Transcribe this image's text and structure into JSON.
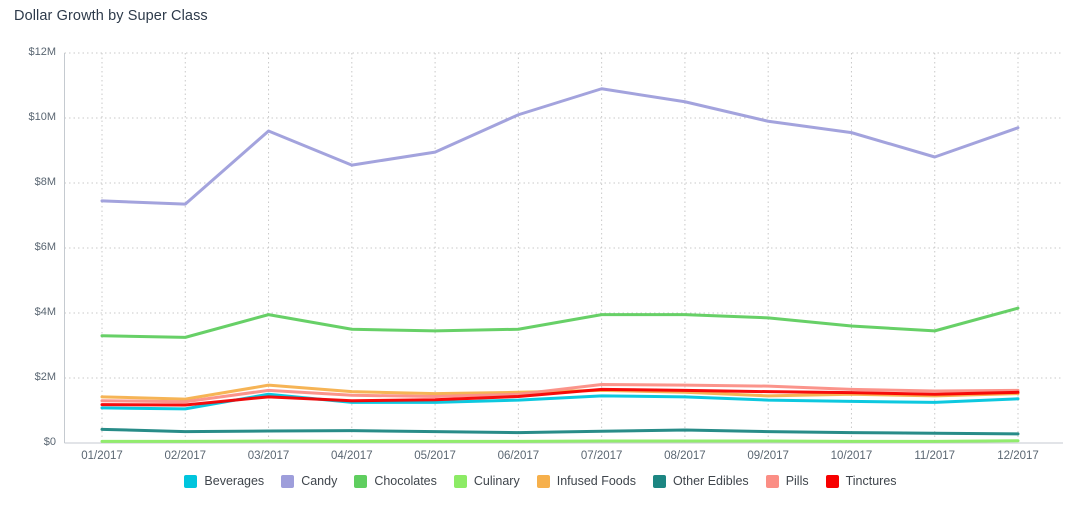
{
  "title": "Dollar Growth by Super Class",
  "chart_data": {
    "type": "line",
    "title": "Dollar Growth by Super Class",
    "unit": "USD millions",
    "x": [
      "01/2017",
      "02/2017",
      "03/2017",
      "04/2017",
      "05/2017",
      "06/2017",
      "07/2017",
      "08/2017",
      "09/2017",
      "10/2017",
      "11/2017",
      "12/2017"
    ],
    "series": [
      {
        "name": "Beverages",
        "color": "#00c5dd",
        "values": [
          1.08,
          1.05,
          1.5,
          1.25,
          1.25,
          1.32,
          1.45,
          1.42,
          1.32,
          1.28,
          1.25,
          1.36
        ]
      },
      {
        "name": "Candy",
        "color": "#9e9edb",
        "values": [
          7.45,
          7.35,
          9.6,
          8.55,
          8.95,
          10.1,
          10.9,
          10.5,
          9.9,
          9.55,
          8.8,
          9.7
        ]
      },
      {
        "name": "Chocolates",
        "color": "#5fce5f",
        "values": [
          3.3,
          3.25,
          3.95,
          3.5,
          3.45,
          3.5,
          3.95,
          3.95,
          3.85,
          3.6,
          3.45,
          4.15
        ]
      },
      {
        "name": "Culinary",
        "color": "#8ceb65",
        "values": [
          0.05,
          0.05,
          0.06,
          0.05,
          0.05,
          0.05,
          0.06,
          0.06,
          0.06,
          0.05,
          0.05,
          0.07
        ]
      },
      {
        "name": "Infused Foods",
        "color": "#f6b04c",
        "values": [
          1.42,
          1.35,
          1.78,
          1.58,
          1.52,
          1.56,
          1.62,
          1.56,
          1.45,
          1.5,
          1.45,
          1.52
        ]
      },
      {
        "name": "Other Edibles",
        "color": "#1c8682",
        "values": [
          0.42,
          0.35,
          0.37,
          0.38,
          0.35,
          0.32,
          0.36,
          0.4,
          0.35,
          0.32,
          0.3,
          0.28
        ]
      },
      {
        "name": "Pills",
        "color": "#fb8e85",
        "values": [
          1.3,
          1.27,
          1.62,
          1.47,
          1.43,
          1.5,
          1.8,
          1.78,
          1.75,
          1.65,
          1.6,
          1.62
        ]
      },
      {
        "name": "Tinctures",
        "color": "#f70000",
        "values": [
          1.18,
          1.17,
          1.42,
          1.3,
          1.33,
          1.43,
          1.65,
          1.62,
          1.58,
          1.55,
          1.5,
          1.56
        ]
      }
    ],
    "xlabel": "",
    "ylabel": "",
    "ylim": [
      0,
      12
    ],
    "y_ticks": [
      {
        "value": 0,
        "label": "$0"
      },
      {
        "value": 2,
        "label": "$2M"
      },
      {
        "value": 4,
        "label": "$4M"
      },
      {
        "value": 6,
        "label": "$6M"
      },
      {
        "value": 8,
        "label": "$8M"
      },
      {
        "value": 10,
        "label": "$10M"
      },
      {
        "value": 12,
        "label": "$12M"
      }
    ],
    "grid": true,
    "legend_position": "bottom"
  },
  "style": {
    "grid_color": "#c9c9c9",
    "axis_color": "#c5cad0",
    "title_color": "#2d3a4a",
    "tick_label_color": "#5a6672",
    "legend_label_color": "#3f454c"
  }
}
